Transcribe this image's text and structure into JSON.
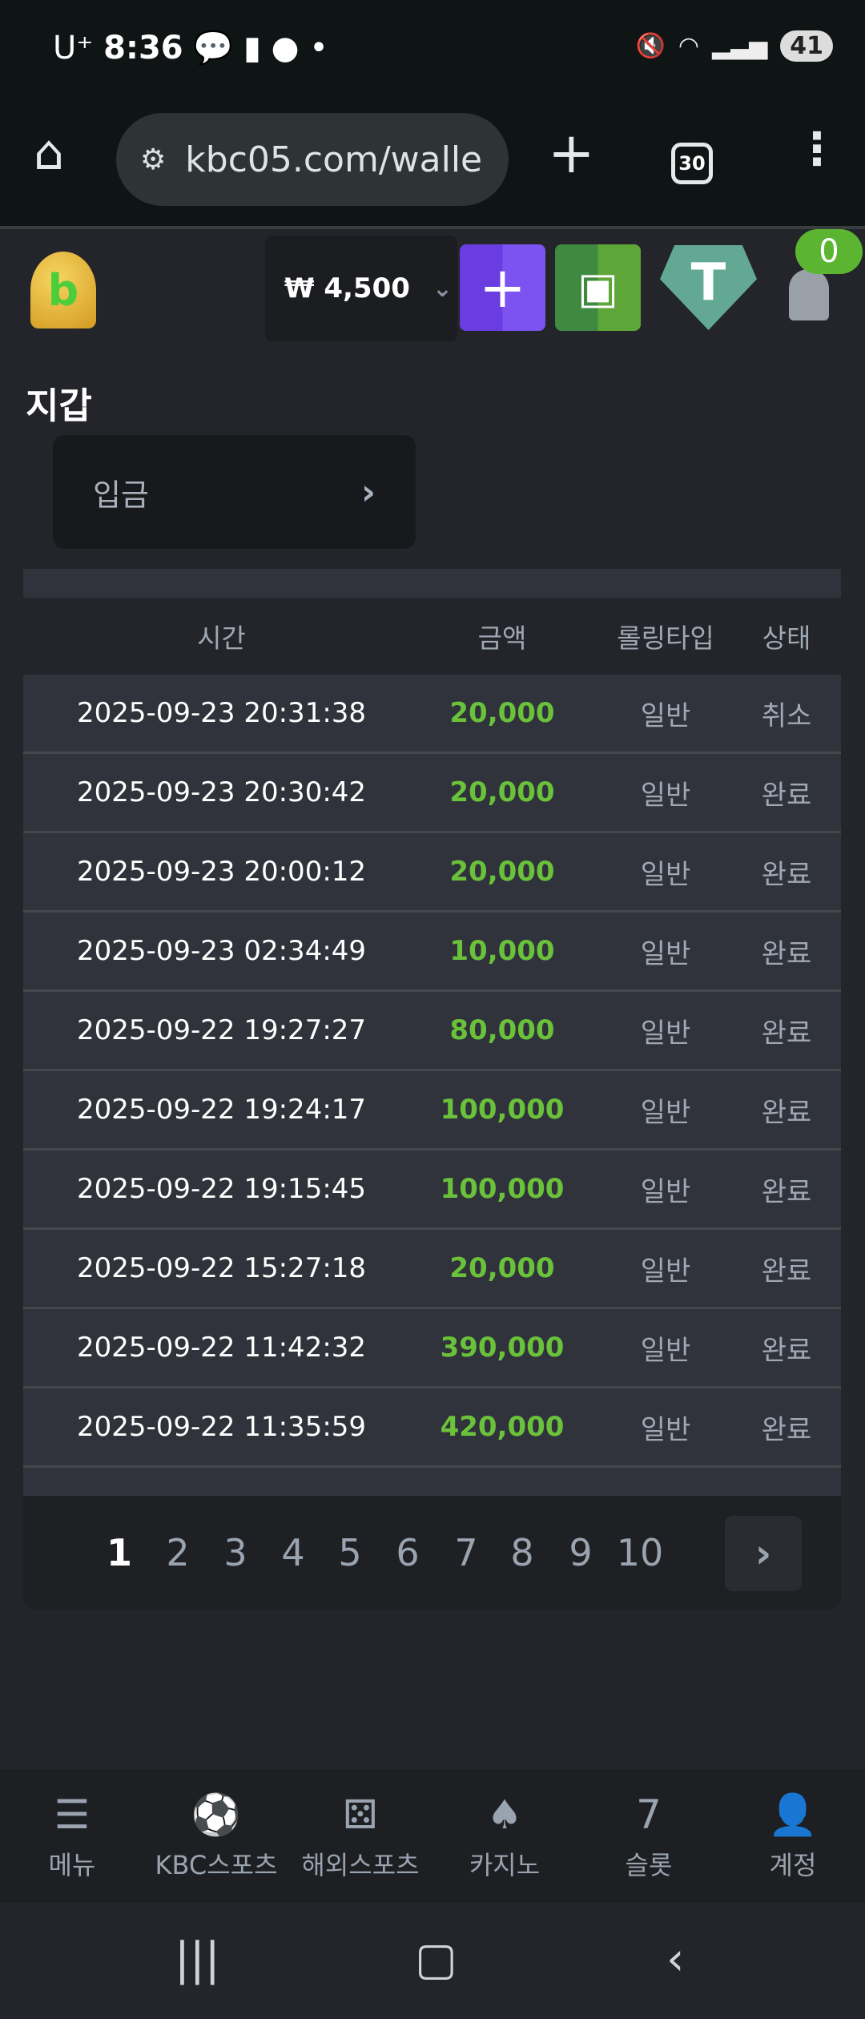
{
  "status_bar": {
    "carrier": "U⁺",
    "time": "8:36",
    "notif_icons": [
      "kakaotalk-icon",
      "b-app-icon",
      "chat-icon"
    ],
    "battery": "41"
  },
  "browser": {
    "url": "kbc05.com/walle",
    "tab_count": "30"
  },
  "header": {
    "balance": "₩ 4,500",
    "notification_count": "0",
    "colors": {
      "add": "#7446e6",
      "wallet": "#55a13a",
      "tether": "#62a892"
    }
  },
  "page": {
    "title": "지갑",
    "deposit_label": "입금"
  },
  "table": {
    "columns": [
      "시간",
      "금액",
      "롤링타입",
      "상태"
    ],
    "rows": [
      [
        "2025-09-23 20:31:38",
        "20,000",
        "일반",
        "취소"
      ],
      [
        "2025-09-23 20:30:42",
        "20,000",
        "일반",
        "완료"
      ],
      [
        "2025-09-23 20:00:12",
        "20,000",
        "일반",
        "완료"
      ],
      [
        "2025-09-23 02:34:49",
        "10,000",
        "일반",
        "완료"
      ],
      [
        "2025-09-22 19:27:27",
        "80,000",
        "일반",
        "완료"
      ],
      [
        "2025-09-22 19:24:17",
        "100,000",
        "일반",
        "완료"
      ],
      [
        "2025-09-22 19:15:45",
        "100,000",
        "일반",
        "완료"
      ],
      [
        "2025-09-22 15:27:18",
        "20,000",
        "일반",
        "완료"
      ],
      [
        "2025-09-22 11:42:32",
        "390,000",
        "일반",
        "완료"
      ],
      [
        "2025-09-22 11:35:59",
        "420,000",
        "일반",
        "완료"
      ]
    ]
  },
  "pagination": {
    "pages": [
      "1",
      "2",
      "3",
      "4",
      "5",
      "6",
      "7",
      "8",
      "9",
      "10"
    ],
    "current": "1"
  },
  "bottom_nav": [
    {
      "label": "메뉴",
      "icon": "menu-search-icon"
    },
    {
      "label": "KBC스포츠",
      "icon": "soccer-ball-icon"
    },
    {
      "label": "해외스포츠",
      "icon": "dice-icon"
    },
    {
      "label": "카지노",
      "icon": "cards-icon"
    },
    {
      "label": "슬롯",
      "icon": "slot-seven-icon"
    },
    {
      "label": "계정",
      "icon": "account-coin-icon"
    }
  ]
}
